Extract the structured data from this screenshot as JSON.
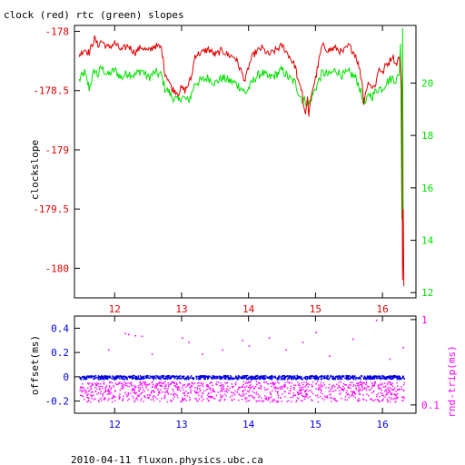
{
  "figure": {
    "title": "clock (red) rtc (green) slopes",
    "footer": "2010-04-11 fluxon.physics.ubc.ca"
  },
  "colors": {
    "red": "#e00000",
    "green": "#00e000",
    "blue": "#0000dd",
    "magenta": "#ff00ff",
    "axis": "#000000"
  },
  "chart_data": [
    {
      "type": "line",
      "title": "clock (red) rtc (green) slopes",
      "ylabel": "clockslope",
      "y2label": "",
      "xlim": [
        11.4,
        16.5
      ],
      "ylim": [
        -180.25,
        -177.95
      ],
      "y2lim": [
        11.8,
        22.2
      ],
      "x_ticks": [
        "12",
        "13",
        "14",
        "15",
        "16"
      ],
      "y_ticks": [
        "-178",
        "-178.5",
        "-179",
        "-179.5",
        "-180"
      ],
      "y2_ticks": [
        "12",
        "14",
        "16",
        "18",
        "20"
      ],
      "grid": false,
      "series": [
        {
          "name": "clock",
          "color": "#e00000",
          "axis": "left",
          "x": [
            11.47,
            11.55,
            11.62,
            11.7,
            11.75,
            11.8,
            11.9,
            12.0,
            12.1,
            12.2,
            12.3,
            12.4,
            12.5,
            12.6,
            12.7,
            12.75,
            12.8,
            12.85,
            12.9,
            12.95,
            13.0,
            13.05,
            13.1,
            13.15,
            13.2,
            13.3,
            13.4,
            13.5,
            13.6,
            13.7,
            13.8,
            13.9,
            13.95,
            14.0,
            14.05,
            14.1,
            14.2,
            14.3,
            14.4,
            14.5,
            14.6,
            14.7,
            14.75,
            14.8,
            14.82,
            14.85,
            14.88,
            14.9,
            14.92,
            14.95,
            15.0,
            15.05,
            15.1,
            15.2,
            15.3,
            15.4,
            15.5,
            15.6,
            15.65,
            15.7,
            15.72,
            15.75,
            15.8,
            15.85,
            15.9,
            15.95,
            16.0,
            16.05,
            16.1,
            16.15,
            16.2,
            16.25,
            16.27,
            16.29,
            16.3,
            16.31,
            16.32
          ],
          "values": [
            -178.2,
            -178.15,
            -178.18,
            -178.06,
            -178.12,
            -178.08,
            -178.14,
            -178.1,
            -178.16,
            -178.12,
            -178.18,
            -178.13,
            -178.17,
            -178.12,
            -178.14,
            -178.35,
            -178.4,
            -178.48,
            -178.5,
            -178.52,
            -178.48,
            -178.5,
            -178.45,
            -178.38,
            -178.2,
            -178.18,
            -178.15,
            -178.2,
            -178.16,
            -178.2,
            -178.22,
            -178.35,
            -178.42,
            -178.3,
            -178.22,
            -178.18,
            -178.14,
            -178.2,
            -178.16,
            -178.12,
            -178.2,
            -178.3,
            -178.45,
            -178.5,
            -178.62,
            -178.7,
            -178.55,
            -178.72,
            -178.6,
            -178.5,
            -178.4,
            -178.25,
            -178.12,
            -178.16,
            -178.14,
            -178.18,
            -178.12,
            -178.2,
            -178.3,
            -178.45,
            -178.62,
            -178.5,
            -178.42,
            -178.48,
            -178.44,
            -178.3,
            -178.36,
            -178.28,
            -178.26,
            -178.2,
            -178.28,
            -178.22,
            -178.3,
            -178.5,
            -180.1,
            -179.5,
            -180.15
          ]
        },
        {
          "name": "rtc",
          "color": "#00e000",
          "axis": "right",
          "x": [
            11.47,
            11.55,
            11.62,
            11.7,
            11.75,
            11.8,
            11.9,
            12.0,
            12.1,
            12.2,
            12.3,
            12.4,
            12.5,
            12.6,
            12.7,
            12.75,
            12.8,
            12.85,
            12.9,
            12.95,
            13.0,
            13.05,
            13.1,
            13.15,
            13.2,
            13.3,
            13.4,
            13.5,
            13.6,
            13.7,
            13.8,
            13.9,
            13.95,
            14.0,
            14.05,
            14.1,
            14.2,
            14.3,
            14.4,
            14.5,
            14.6,
            14.7,
            14.75,
            14.8,
            14.85,
            14.9,
            14.95,
            15.0,
            15.05,
            15.1,
            15.2,
            15.3,
            15.4,
            15.5,
            15.6,
            15.65,
            15.7,
            15.75,
            15.8,
            15.85,
            15.9,
            15.95,
            16.0,
            16.05,
            16.1,
            16.15,
            16.2,
            16.25,
            16.27,
            16.29,
            16.3,
            16.31
          ],
          "values": [
            20.1,
            20.4,
            19.8,
            20.5,
            20.3,
            20.6,
            20.3,
            20.5,
            20.2,
            20.4,
            20.3,
            20.5,
            20.2,
            20.4,
            20.3,
            19.8,
            19.7,
            19.5,
            19.4,
            19.3,
            19.5,
            19.4,
            19.3,
            19.6,
            20.0,
            20.1,
            20.2,
            20.0,
            20.2,
            20.1,
            20.0,
            19.8,
            19.6,
            19.8,
            20.0,
            20.2,
            20.4,
            20.2,
            20.3,
            20.5,
            20.2,
            20.0,
            19.6,
            19.4,
            19.3,
            19.2,
            19.5,
            19.8,
            20.1,
            20.4,
            20.3,
            20.5,
            20.3,
            20.4,
            20.2,
            19.9,
            19.4,
            19.2,
            19.6,
            19.5,
            19.7,
            19.8,
            19.8,
            20.0,
            20.1,
            20.2,
            20.1,
            20.3,
            21.5,
            14.8,
            22.1,
            14.2
          ]
        }
      ]
    },
    {
      "type": "scatter",
      "title": "",
      "ylabel": "offset(ms)",
      "y2label": "rnd-trip(ms)",
      "xlim": [
        11.4,
        16.5
      ],
      "ylim": [
        -0.3,
        0.5
      ],
      "y2_scale": "log",
      "y2lim": [
        0.08,
        1.1
      ],
      "x_ticks": [
        "12",
        "13",
        "14",
        "15",
        "16"
      ],
      "y_ticks": [
        "0.4",
        "0.2",
        "0",
        "-0.2"
      ],
      "y2_ticks": [
        "1",
        "0.1"
      ],
      "grid": false,
      "series": [
        {
          "name": "offset",
          "color": "#0000dd",
          "axis": "left",
          "band": {
            "x": [
              11.47,
              16.32
            ],
            "center": 0.0,
            "spread": 0.015
          }
        },
        {
          "name": "rnd-trip",
          "color": "#ff00ff",
          "axis": "right",
          "band": {
            "x": [
              11.47,
              16.32
            ],
            "center": 0.14,
            "spread_low": 0.11,
            "spread_high": 0.19
          },
          "outliers": [
            {
              "x": 11.9,
              "y": 0.45
            },
            {
              "x": 12.15,
              "y": 0.7
            },
            {
              "x": 12.2,
              "y": 0.68
            },
            {
              "x": 12.3,
              "y": 0.66
            },
            {
              "x": 12.4,
              "y": 0.65
            },
            {
              "x": 12.55,
              "y": 0.4
            },
            {
              "x": 13.0,
              "y": 0.62
            },
            {
              "x": 13.1,
              "y": 0.55
            },
            {
              "x": 13.3,
              "y": 0.4
            },
            {
              "x": 13.6,
              "y": 0.45
            },
            {
              "x": 13.9,
              "y": 0.58
            },
            {
              "x": 14.0,
              "y": 0.5
            },
            {
              "x": 14.3,
              "y": 0.62
            },
            {
              "x": 14.55,
              "y": 0.45
            },
            {
              "x": 14.8,
              "y": 0.55
            },
            {
              "x": 15.0,
              "y": 0.72
            },
            {
              "x": 15.2,
              "y": 0.38
            },
            {
              "x": 15.55,
              "y": 0.6
            },
            {
              "x": 15.9,
              "y": 1.0
            },
            {
              "x": 16.1,
              "y": 0.35
            },
            {
              "x": 16.3,
              "y": 0.48
            }
          ]
        }
      ]
    }
  ]
}
